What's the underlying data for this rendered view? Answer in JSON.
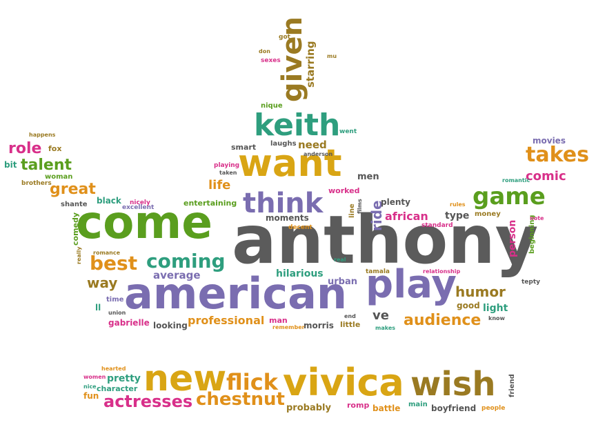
{
  "palette": {
    "green": "#5a9e1e",
    "teal": "#2e9e7e",
    "purple": "#7a6db0",
    "gray": "#5b5b5b",
    "orange": "#e0901a",
    "pink": "#d8308a",
    "brown": "#9a7a22",
    "gold": "#d9a514",
    "red": "#d0402a",
    "dark": "#555555"
  },
  "words": [
    {
      "text": "anthony",
      "color": "gray"
    },
    {
      "text": "come",
      "color": "green"
    },
    {
      "text": "american",
      "color": "purple"
    },
    {
      "text": "want",
      "color": "gold"
    },
    {
      "text": "play",
      "color": "purple"
    },
    {
      "text": "vivica",
      "color": "gold"
    },
    {
      "text": "new",
      "color": "gold"
    },
    {
      "text": "wish",
      "color": "brown"
    },
    {
      "text": "keith",
      "color": "teal"
    },
    {
      "text": "think",
      "color": "purple"
    },
    {
      "text": "game",
      "color": "green"
    },
    {
      "text": "takes",
      "color": "orange"
    },
    {
      "text": "flick",
      "color": "orange"
    },
    {
      "text": "chestnut",
      "color": "orange"
    },
    {
      "text": "actresses",
      "color": "pink"
    },
    {
      "text": "given",
      "color": "brown"
    },
    {
      "text": "best",
      "color": "orange"
    },
    {
      "text": "coming",
      "color": "teal"
    },
    {
      "text": "audience",
      "color": "orange"
    },
    {
      "text": "humor",
      "color": "brown"
    },
    {
      "text": "great",
      "color": "orange"
    },
    {
      "text": "talent",
      "color": "green"
    },
    {
      "text": "role",
      "color": "pink"
    },
    {
      "text": "comic",
      "color": "pink"
    },
    {
      "text": "ve",
      "color": "dark"
    },
    {
      "text": "ride",
      "color": "purple"
    },
    {
      "text": "african",
      "color": "pink"
    },
    {
      "text": "professional",
      "color": "orange"
    },
    {
      "text": "way",
      "color": "brown"
    },
    {
      "text": "average",
      "color": "purple"
    },
    {
      "text": "life",
      "color": "orange"
    },
    {
      "text": "need",
      "color": "brown"
    },
    {
      "text": "starring",
      "color": "brown"
    },
    {
      "text": "person",
      "color": "pink"
    },
    {
      "text": "hilarious",
      "color": "teal"
    },
    {
      "text": "men",
      "color": "dark"
    },
    {
      "text": "moments",
      "color": "dark"
    },
    {
      "text": "urban",
      "color": "purple"
    },
    {
      "text": "pretty",
      "color": "teal"
    },
    {
      "text": "probably",
      "color": "brown"
    },
    {
      "text": "light",
      "color": "teal"
    },
    {
      "text": "good",
      "color": "brown"
    },
    {
      "text": "type",
      "color": "dark"
    },
    {
      "text": "plenty",
      "color": "dark"
    },
    {
      "text": "entertaining",
      "color": "green"
    },
    {
      "text": "gabrielle",
      "color": "pink"
    },
    {
      "text": "looking",
      "color": "dark"
    },
    {
      "text": "morris",
      "color": "dark"
    },
    {
      "text": "little",
      "color": "brown"
    },
    {
      "text": "boyfriend",
      "color": "dark"
    },
    {
      "text": "battle",
      "color": "orange"
    },
    {
      "text": "romp",
      "color": "pink"
    },
    {
      "text": "main",
      "color": "teal"
    },
    {
      "text": "black",
      "color": "teal"
    },
    {
      "text": "character",
      "color": "teal"
    },
    {
      "text": "fun",
      "color": "orange"
    },
    {
      "text": "worked",
      "color": "pink"
    },
    {
      "text": "smart",
      "color": "dark"
    },
    {
      "text": "laughs",
      "color": "dark"
    },
    {
      "text": "movies",
      "color": "purple"
    },
    {
      "text": "money",
      "color": "brown"
    },
    {
      "text": "beginning",
      "color": "green"
    },
    {
      "text": "comedy",
      "color": "green"
    },
    {
      "text": "time",
      "color": "purple"
    },
    {
      "text": "ll",
      "color": "teal"
    },
    {
      "text": "man",
      "color": "pink"
    },
    {
      "text": "bit",
      "color": "teal"
    },
    {
      "text": "fox",
      "color": "brown"
    },
    {
      "text": "woman",
      "color": "green"
    },
    {
      "text": "shante",
      "color": "dark"
    },
    {
      "text": "brothers",
      "color": "brown"
    },
    {
      "text": "nique",
      "color": "green"
    },
    {
      "text": "friend",
      "color": "dark"
    },
    {
      "text": "line",
      "color": "brown"
    },
    {
      "text": "films",
      "color": "dark"
    },
    {
      "text": "happens",
      "color": "brown"
    },
    {
      "text": "nicely",
      "color": "pink"
    },
    {
      "text": "excellent",
      "color": "purple"
    },
    {
      "text": "decent",
      "color": "orange"
    },
    {
      "text": "anderson",
      "color": "dark"
    },
    {
      "text": "taken",
      "color": "dark"
    },
    {
      "text": "playing",
      "color": "pink"
    },
    {
      "text": "went",
      "color": "teal"
    },
    {
      "text": "got",
      "color": "brown"
    },
    {
      "text": "don",
      "color": "brown"
    },
    {
      "text": "sexes",
      "color": "pink"
    },
    {
      "text": "mu",
      "color": "brown"
    },
    {
      "text": "romance",
      "color": "brown"
    },
    {
      "text": "really",
      "color": "brown"
    },
    {
      "text": "union",
      "color": "dark"
    },
    {
      "text": "remember",
      "color": "orange"
    },
    {
      "text": "end",
      "color": "dark"
    },
    {
      "text": "makes",
      "color": "teal"
    },
    {
      "text": "real",
      "color": "teal"
    },
    {
      "text": "tamala",
      "color": "brown"
    },
    {
      "text": "relationship",
      "color": "pink"
    },
    {
      "text": "rules",
      "color": "orange"
    },
    {
      "text": "standard",
      "color": "pink"
    },
    {
      "text": "romantic",
      "color": "teal"
    },
    {
      "text": "note",
      "color": "pink"
    },
    {
      "text": "tepty",
      "color": "dark"
    },
    {
      "text": "know",
      "color": "dark"
    },
    {
      "text": "hearted",
      "color": "orange"
    },
    {
      "text": "women",
      "color": "pink"
    },
    {
      "text": "nice",
      "color": "teal"
    },
    {
      "text": "people",
      "color": "orange"
    }
  ]
}
